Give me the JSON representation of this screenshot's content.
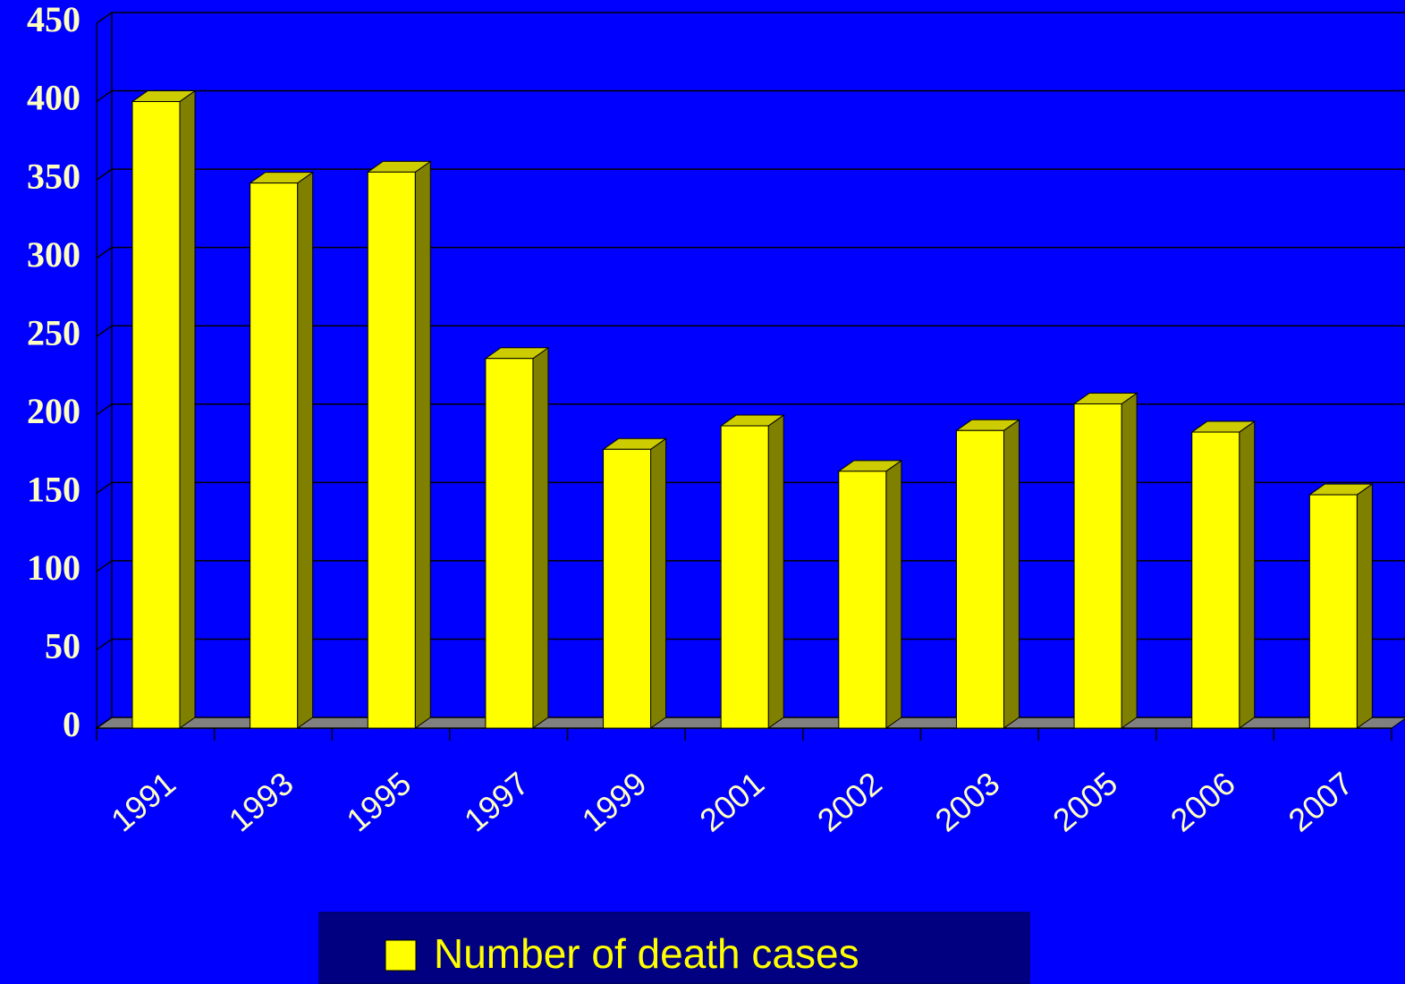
{
  "chart_data": {
    "type": "bar",
    "categories": [
      "1991",
      "1993",
      "1995",
      "1997",
      "1999",
      "2001",
      "2002",
      "2003",
      "2005",
      "2006",
      "2007"
    ],
    "series": [
      {
        "name": "Number of death cases",
        "color": "#ffff00",
        "values": [
          400,
          348,
          355,
          236,
          178,
          193,
          164,
          190,
          207,
          189,
          149
        ]
      }
    ],
    "ylim": [
      0,
      450
    ],
    "yticks": [
      0,
      50,
      100,
      150,
      200,
      250,
      300,
      350,
      400,
      450
    ],
    "grid": true
  }
}
